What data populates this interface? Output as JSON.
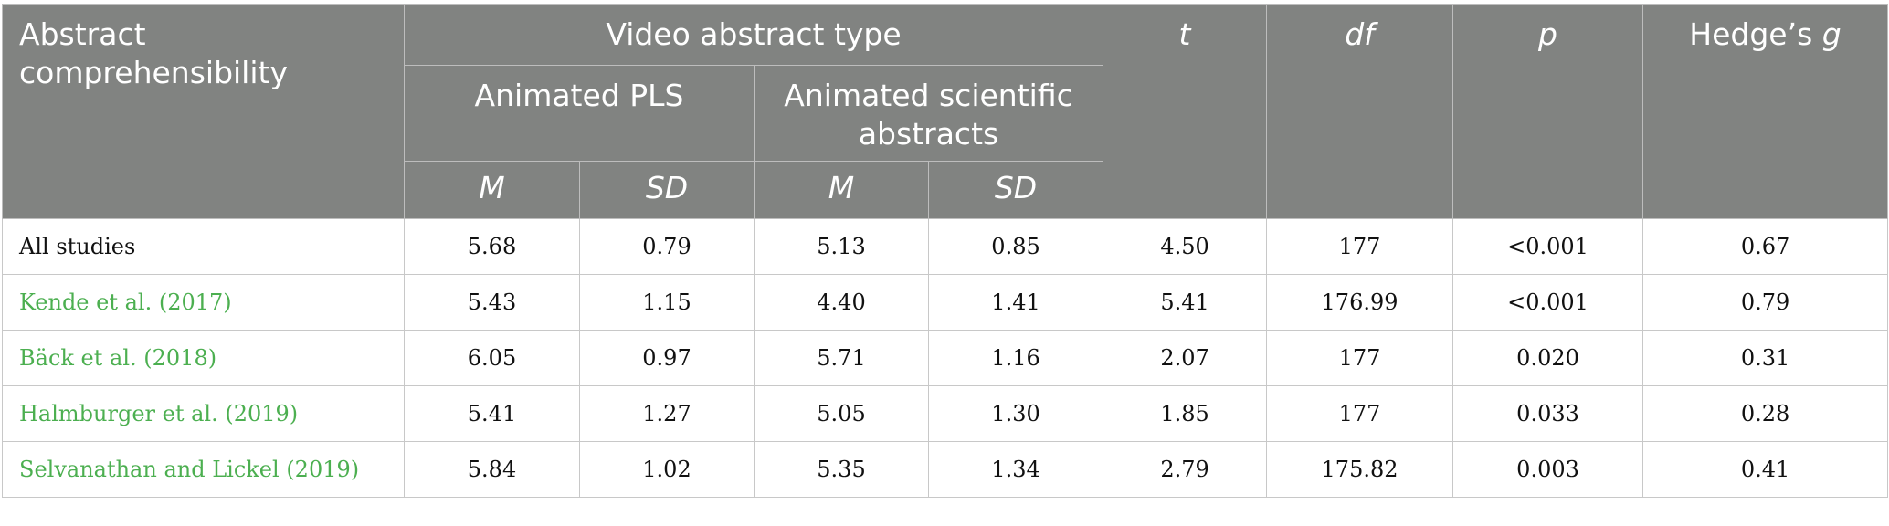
{
  "header": {
    "col1": "Abstract comprehensibility",
    "group": "Video abstract type",
    "sub_pls": "Animated PLS",
    "sub_sci": "Animated scientific abstracts",
    "m": "M",
    "sd": "SD",
    "t": "t",
    "df": "df",
    "p": "p",
    "hedge_prefix": "Hedge’s ",
    "hedge_g": "g"
  },
  "rows": [
    {
      "study": "All studies",
      "pls_m": "5.68",
      "pls_sd": "0.79",
      "sci_m": "5.13",
      "sci_sd": "0.85",
      "t": "4.50",
      "df": "177",
      "p": "<0.001",
      "g": "0.67"
    },
    {
      "study": "Kende et al. (2017)",
      "pls_m": "5.43",
      "pls_sd": "1.15",
      "sci_m": "4.40",
      "sci_sd": "1.41",
      "t": "5.41",
      "df": "176.99",
      "p": "<0.001",
      "g": "0.79"
    },
    {
      "study": "Bäck et al. (2018)",
      "pls_m": "6.05",
      "pls_sd": "0.97",
      "sci_m": "5.71",
      "sci_sd": "1.16",
      "t": "2.07",
      "df": "177",
      "p": "0.020",
      "g": "0.31"
    },
    {
      "study": "Halmburger et al. (2019)",
      "pls_m": "5.41",
      "pls_sd": "1.27",
      "sci_m": "5.05",
      "sci_sd": "1.30",
      "t": "1.85",
      "df": "177",
      "p": "0.033",
      "g": "0.28"
    },
    {
      "study": "Selvanathan and Lickel (2019)",
      "pls_m": "5.84",
      "pls_sd": "1.02",
      "sci_m": "5.35",
      "sci_sd": "1.34",
      "t": "2.79",
      "df": "175.82",
      "p": "0.003",
      "g": "0.41"
    }
  ],
  "colors": {
    "header_bg": "#818381",
    "link": "#4caf50"
  }
}
